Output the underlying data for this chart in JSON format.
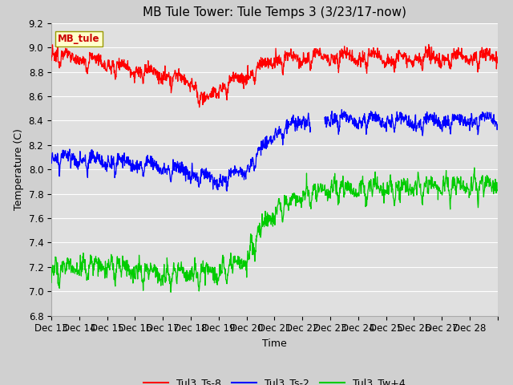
{
  "title": "MB Tule Tower: Tule Temps 3 (3/23/17-now)",
  "xlabel": "Time",
  "ylabel": "Temperature (C)",
  "ylim": [
    6.8,
    9.2
  ],
  "xlim": [
    0,
    16
  ],
  "x_tick_labels": [
    "Dec 13",
    "Dec 14",
    "Dec 15",
    "Dec 16",
    "Dec 17",
    "Dec 18",
    "Dec 19",
    "Dec 20",
    "Dec 21",
    "Dec 22",
    "Dec 23",
    "Dec 24",
    "Dec 25",
    "Dec 26",
    "Dec 27",
    "Dec 28"
  ],
  "legend_labels": [
    "Tul3_Ts-8",
    "Tul3_Ts-2",
    "Tul3_Tw+4"
  ],
  "legend_colors": [
    "#ff0000",
    "#0000ff",
    "#00cc00"
  ],
  "line_colors": [
    "#ff0000",
    "#0000ff",
    "#00cc00"
  ],
  "watermark_text": "MB_tule",
  "watermark_bg": "#ffffcc",
  "watermark_fg": "#cc0000",
  "fig_bg": "#d0d0d0",
  "plot_bg": "#e0e0e0",
  "title_fontsize": 11,
  "label_fontsize": 9,
  "tick_fontsize": 8.5
}
